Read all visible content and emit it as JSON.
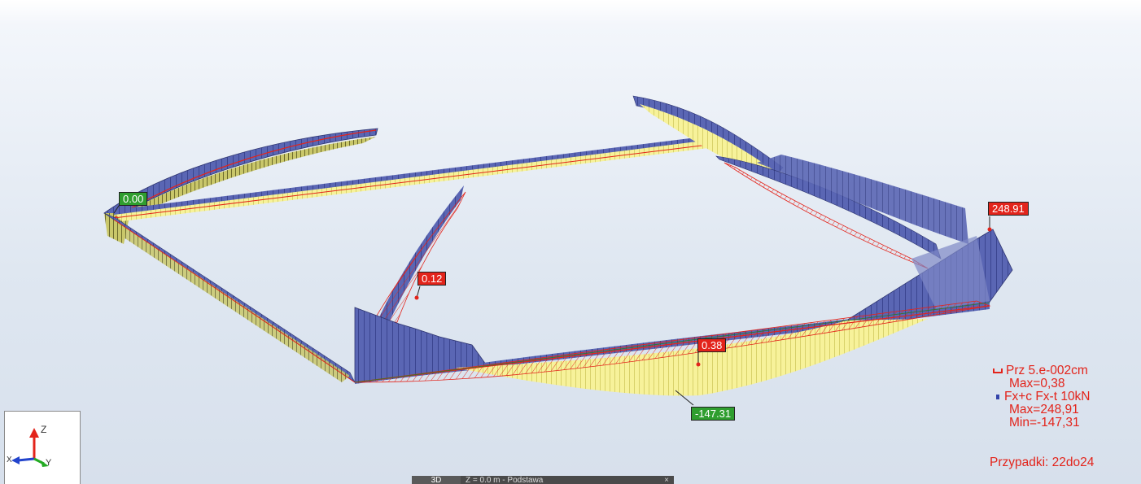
{
  "value_labels": {
    "label_0": "0.00",
    "label_1": "0.12",
    "label_2": "248.91",
    "label_3": "0.38",
    "label_4": "-147.31"
  },
  "legend": {
    "prz_line": "Prz  5.e-002cm",
    "prz_max": "Max=0,38",
    "fx_line": "Fx+c Fx-t  10kN",
    "fx_max": "Max=248,91",
    "fx_min": "Min=-147,31",
    "cases": "Przypadki: 22do24"
  },
  "axis_triad": {
    "z": "Z",
    "x": "X",
    "y": "Y"
  },
  "view_bar": {
    "view": "3D",
    "plane": "Z = 0.0 m - Podstawa",
    "close": "×"
  },
  "colors": {
    "positive_force": "#5a66b4",
    "negative_force": "#f7f29a",
    "deformation": "#e3241b",
    "label_red": "#e3241b",
    "label_green": "#2f9e2f"
  },
  "icons": [
    "axis-triad-icon",
    "legend-displacement-icon",
    "legend-force-icon",
    "close-icon"
  ]
}
